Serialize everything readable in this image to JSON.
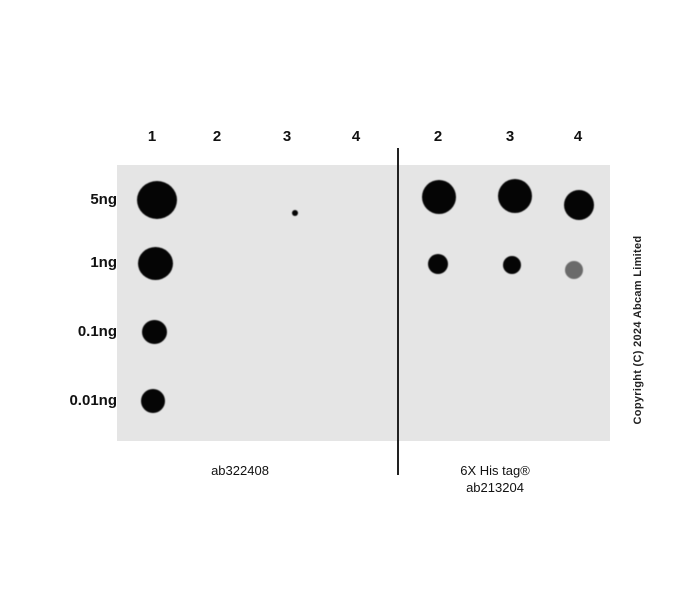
{
  "lanes": [
    "1",
    "2",
    "3",
    "4",
    "2",
    "3",
    "4"
  ],
  "amounts": [
    "5ng",
    "1ng",
    "0.1ng",
    "0.01ng"
  ],
  "captions": {
    "left": "ab322408",
    "right_line1": "6X His tag®",
    "right_line2": "ab213204"
  },
  "copyright": "Copyright (C) 2024 Abcam Limited",
  "colors": {
    "membrane": "#e5e5e5",
    "dot": "#050505"
  }
}
